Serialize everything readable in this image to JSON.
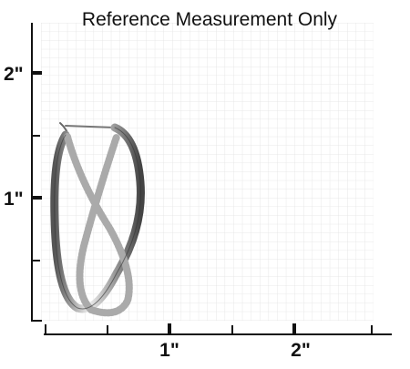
{
  "title": "Reference Measurement Only",
  "y_axis": {
    "labels": [
      "2\"",
      "1\""
    ]
  },
  "x_axis": {
    "labels": [
      "1\"",
      "2\""
    ]
  }
}
